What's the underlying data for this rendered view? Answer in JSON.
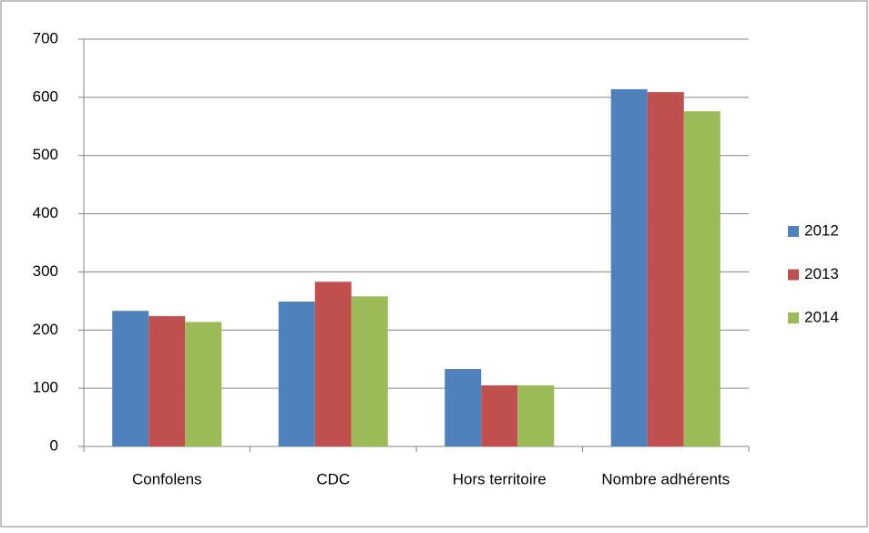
{
  "chart_data": {
    "type": "bar",
    "categories": [
      "Confolens",
      "CDC",
      "Hors territoire",
      "Nombre adhérents"
    ],
    "series": [
      {
        "name": "2012",
        "color": "#4f81bd",
        "values": [
          233,
          249,
          133,
          614
        ]
      },
      {
        "name": "2013",
        "color": "#c0504d",
        "values": [
          224,
          283,
          105,
          609
        ]
      },
      {
        "name": "2014",
        "color": "#9bbb59",
        "values": [
          214,
          258,
          105,
          576
        ]
      }
    ],
    "ylim": [
      0,
      700
    ],
    "yticks": [
      0,
      100,
      200,
      300,
      400,
      500,
      600,
      700
    ],
    "grid": true,
    "legend": "right"
  }
}
